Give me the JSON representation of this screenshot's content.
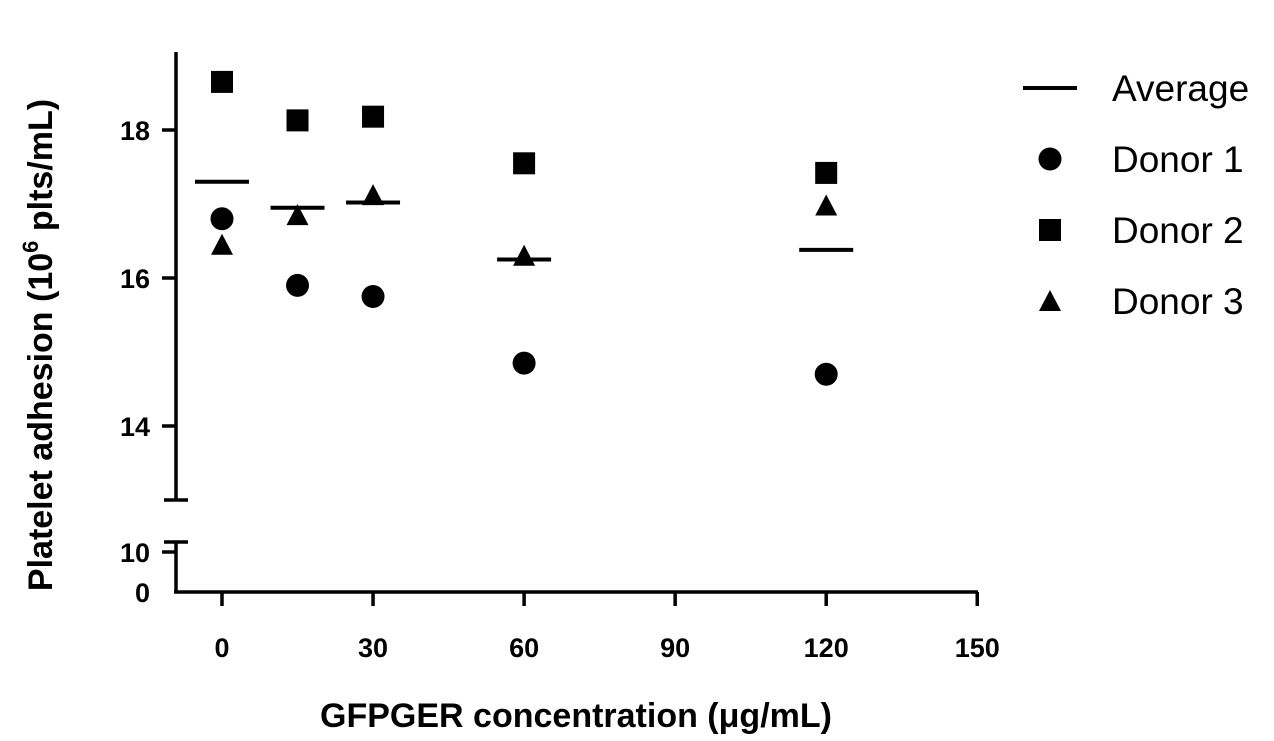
{
  "chart_data": {
    "type": "scatter",
    "xlabel": "GFPGER concentration (μg/mL)",
    "ylabel_main": "Platelet adhesion (10",
    "ylabel_sup": "6",
    "ylabel_tail": " plts/mL)",
    "x_ticks": [
      "0",
      "30",
      "60",
      "90",
      "120",
      "150"
    ],
    "x_tick_values": [
      0,
      30,
      60,
      90,
      120,
      150
    ],
    "x_range": [
      -10,
      150
    ],
    "y_ticks_upper": [
      "14",
      "16",
      "18"
    ],
    "y_tick_values_upper": [
      14,
      16,
      18
    ],
    "y_range_upper": [
      13.0,
      19.0
    ],
    "y_ticks_lower": [
      "0",
      "10"
    ],
    "y_tick_values_lower": [
      0,
      10
    ],
    "y_range_lower": [
      0,
      10
    ],
    "axis_break": true,
    "grid": false,
    "legend_position": "right",
    "series": [
      {
        "name": "Average",
        "marker": "bar",
        "x": [
          0,
          15,
          30,
          60,
          120
        ],
        "y": [
          17.3,
          16.95,
          17.02,
          16.25,
          16.38
        ]
      },
      {
        "name": "Donor 1",
        "marker": "circle",
        "x": [
          0,
          15,
          30,
          60,
          120
        ],
        "y": [
          16.8,
          15.9,
          15.75,
          14.85,
          14.7
        ]
      },
      {
        "name": "Donor 2",
        "marker": "square",
        "x": [
          0,
          15,
          30,
          60,
          120
        ],
        "y": [
          18.65,
          18.13,
          18.18,
          17.55,
          17.42
        ]
      },
      {
        "name": "Donor 3",
        "marker": "triangle",
        "x": [
          0,
          15,
          30,
          60,
          120
        ],
        "y": [
          16.45,
          16.85,
          17.12,
          16.3,
          16.98
        ]
      }
    ]
  }
}
